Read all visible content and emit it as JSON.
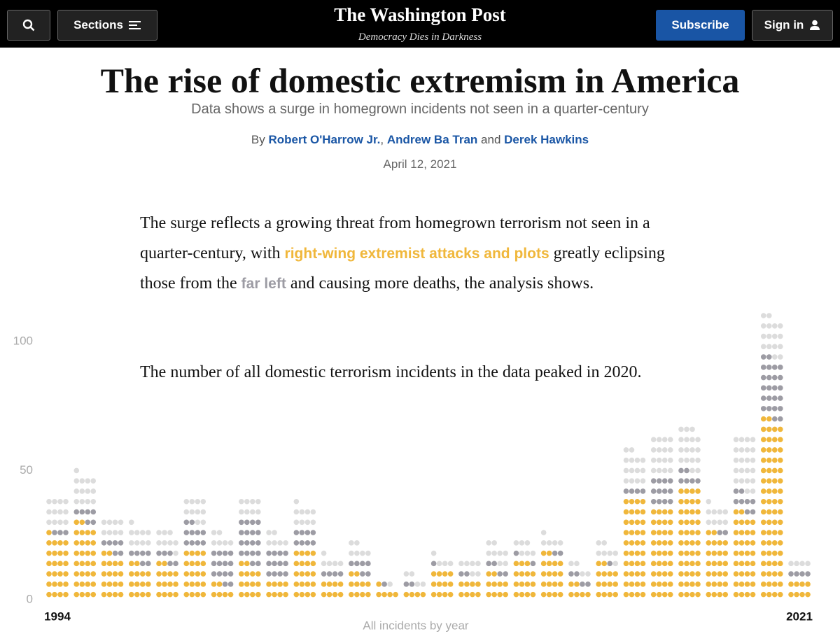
{
  "header": {
    "sections": "Sections",
    "logo": "The Washington Post",
    "tagline": "Democracy Dies in Darkness",
    "subscribe": "Subscribe",
    "sign_in": "Sign in"
  },
  "article": {
    "title": "The rise of domestic extremism in America",
    "subtitle": "Data shows a surge in homegrown incidents not seen in a quarter-century",
    "byline": {
      "by": "By",
      "authors": [
        "Robert O'Harrow Jr.",
        "Andrew Ba Tran",
        "Derek Hawkins"
      ],
      "separators": [
        ",",
        "and"
      ]
    },
    "date": "April 12, 2021",
    "paragraphs": [
      [
        "The surge reflects a growing threat from homegrown terrorism not seen in a quarter-century, with ",
        "right-wing extremist attacks and plots",
        " greatly eclipsing those from the ",
        "far left",
        " and causing more deaths, the analysis shows."
      ],
      [
        "The number of all domestic terrorism incidents in the data peaked in 2020."
      ]
    ]
  },
  "chart_data": {
    "type": "dot",
    "xlabel": "All incidents by year",
    "categories": [
      "1994",
      null,
      null,
      null,
      null,
      null,
      null,
      null,
      null,
      null,
      null,
      null,
      null,
      null,
      null,
      null,
      null,
      null,
      null,
      null,
      null,
      null,
      null,
      null,
      null,
      null,
      null,
      "2021"
    ],
    "series": [
      {
        "color": "#f0b73b",
        "values": [
          25,
          30,
          18,
          14,
          14,
          20,
          6,
          14,
          8,
          20,
          8,
          10,
          5,
          4,
          12,
          8,
          10,
          15,
          18,
          6,
          14,
          40,
          36,
          44,
          26,
          34,
          70,
          8
        ]
      },
      {
        "color": "#9d9ca4",
        "values": [
          3,
          6,
          6,
          6,
          5,
          10,
          14,
          18,
          12,
          8,
          4,
          6,
          1,
          2,
          1,
          2,
          4,
          2,
          2,
          4,
          1,
          4,
          12,
          6,
          2,
          8,
          24,
          4
        ]
      },
      {
        "color": "#dcdcdc",
        "values": [
          12,
          13,
          8,
          9,
          8,
          10,
          6,
          8,
          6,
          9,
          5,
          6,
          1,
          4,
          4,
          6,
          8,
          6,
          5,
          4,
          7,
          14,
          16,
          17,
          9,
          22,
          16,
          4
        ]
      }
    ],
    "ylim": [
      0,
      110
    ],
    "yticks": [
      0,
      50,
      100
    ]
  }
}
